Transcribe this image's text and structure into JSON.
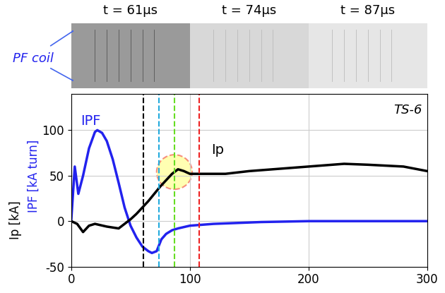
{
  "chart_data": {
    "type": "line",
    "photos": [
      "t = 61μs",
      "t = 74μs",
      "t = 87μs"
    ],
    "photo_annotation": "PF coil",
    "y_label_parts": [
      {
        "text": "Ip [kA]",
        "color": "#000000"
      },
      {
        "text": "IPF [kA turn]",
        "color": "#2222ee"
      }
    ],
    "panel_label": "TS-6",
    "xlim": [
      0,
      300
    ],
    "xticks": [
      0,
      100,
      200,
      300
    ],
    "ylim": [
      -50,
      140
    ],
    "yticks": [
      -50,
      0,
      50,
      100
    ],
    "grid": true,
    "series": [
      {
        "name": "IPF",
        "color": "#2222ee",
        "x": [
          0,
          3,
          6,
          10,
          15,
          20,
          22,
          26,
          30,
          35,
          40,
          45,
          50,
          55,
          60,
          65,
          68,
          72,
          76,
          80,
          85,
          90,
          100,
          110,
          120,
          140,
          160,
          200,
          250,
          300
        ],
        "values": [
          0,
          60,
          30,
          50,
          80,
          98,
          100,
          97,
          88,
          68,
          42,
          15,
          -5,
          -18,
          -28,
          -33,
          -35,
          -33,
          -20,
          -14,
          -10,
          -8,
          -5,
          -4,
          -3,
          -2,
          -1,
          0,
          0,
          0
        ]
      },
      {
        "name": "Ip",
        "color": "#000000",
        "x": [
          0,
          5,
          10,
          15,
          20,
          30,
          40,
          45,
          50,
          55,
          60,
          65,
          70,
          75,
          80,
          85,
          90,
          95,
          100,
          110,
          130,
          150,
          180,
          200,
          230,
          250,
          280,
          300
        ],
        "values": [
          0,
          -3,
          -12,
          -5,
          -3,
          -6,
          -8,
          -3,
          2,
          8,
          15,
          22,
          30,
          38,
          45,
          52,
          57,
          55,
          52,
          52,
          52,
          55,
          58,
          60,
          63,
          62,
          60,
          55
        ]
      }
    ],
    "vertical_lines": {
      "x": [
        61,
        74,
        87,
        108
      ],
      "colors": [
        "#000000",
        "#22aadd",
        "#66dd22",
        "#ee2222"
      ],
      "line_style": "dashed"
    },
    "highlight": {
      "x": 87,
      "series": "Ip",
      "color": "#ee2222"
    }
  }
}
